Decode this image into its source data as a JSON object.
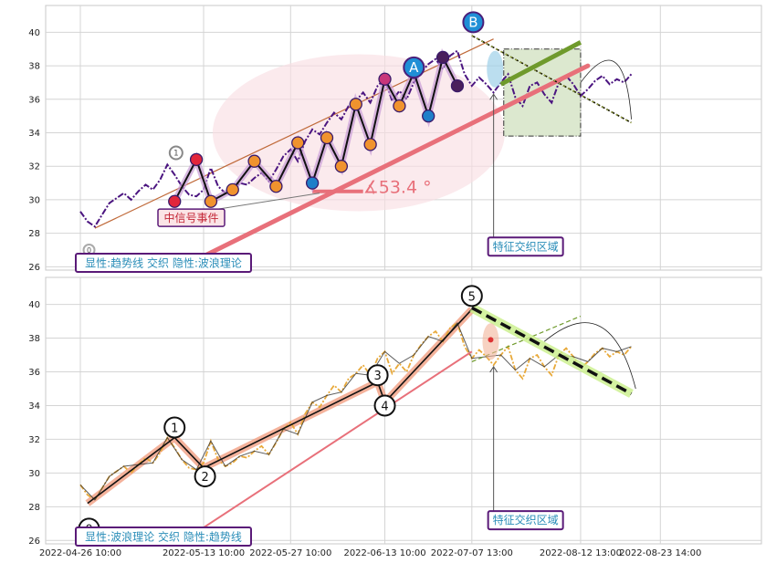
{
  "chart_data": [
    {
      "type": "line",
      "panel": "top",
      "ylim": [
        25.8,
        41.6
      ],
      "y_ticks": [
        26,
        28,
        30,
        32,
        34,
        36,
        38,
        40
      ],
      "grid": true,
      "annotation_box": "显性:趋势线 交织 隐性:波浪理论",
      "signal_label": "中信号事件",
      "feature_label": "特征交织区域",
      "angle_label": "∡53.4 °",
      "wave_labels": {
        "a": "A",
        "b": "B",
        "one": "1",
        "zero": "0"
      },
      "price_series": {
        "x": [
          0,
          0.5,
          1,
          1.5,
          2,
          2.5,
          3,
          3.5,
          4,
          4.5,
          5,
          5.5,
          6,
          6.5,
          7,
          7.5,
          8,
          8.5,
          9,
          9.5,
          10,
          10.5,
          11,
          11.5,
          12,
          12.5,
          13,
          13.5,
          14,
          14.5,
          15,
          15.5,
          16,
          16.5,
          17,
          17.5,
          18,
          18.5,
          19,
          19.5,
          20,
          20.5,
          21,
          21.5,
          22,
          22.5,
          23,
          23.5,
          24,
          24.5,
          25,
          25.5,
          26,
          26.5,
          27,
          27.5,
          28,
          28.5,
          29,
          29.5,
          30,
          30.5,
          31,
          31.5,
          32,
          32.5,
          33,
          33.5,
          34,
          34.5,
          35,
          35.5,
          36,
          36.5,
          37,
          37.5,
          38
        ],
        "y": [
          29.3,
          28.7,
          28.4,
          29.1,
          29.8,
          30.1,
          30.4,
          30.0,
          30.5,
          30.9,
          30.6,
          31.2,
          32.1,
          31.5,
          30.8,
          30.3,
          30.2,
          30.6,
          31.9,
          30.8,
          30.4,
          30.6,
          31.0,
          30.9,
          31.3,
          31.6,
          31.1,
          31.8,
          32.6,
          33.0,
          32.3,
          33.5,
          34.2,
          33.9,
          34.6,
          35.2,
          34.8,
          35.6,
          35.9,
          36.4,
          35.8,
          36.8,
          37.2,
          35.9,
          36.5,
          36.0,
          37.0,
          37.6,
          38.1,
          38.4,
          37.8,
          38.6,
          38.9,
          37.5,
          36.8,
          37.3,
          36.9,
          36.4,
          37.0,
          37.5,
          36.1,
          35.6,
          36.8,
          37.0,
          36.3,
          35.8,
          37.0,
          37.4,
          36.9,
          36.2,
          36.6,
          37.1,
          37.4,
          36.9,
          37.2,
          37.0,
          37.5
        ]
      },
      "trend_line": {
        "x": [
          7.5,
          35
        ],
        "y": [
          26.2,
          38.0
        ]
      },
      "upper_channel": {
        "x": [
          1,
          28.5
        ],
        "y": [
          28.3,
          39.6
        ]
      },
      "forecast_line": {
        "x": [
          27,
          38
        ],
        "y": [
          39.8,
          34.6
        ]
      },
      "green_line": {
        "x": [
          29,
          34.5
        ],
        "y": [
          36.9,
          39.4
        ]
      },
      "wave_points": {
        "x": [
          6.5,
          8,
          9,
          10.5,
          12,
          13.5,
          15,
          16,
          17,
          18,
          19,
          20,
          21,
          22,
          23,
          24,
          25,
          26
        ],
        "y": [
          29.9,
          32.4,
          29.9,
          30.6,
          32.3,
          30.8,
          33.4,
          31.0,
          33.7,
          32.0,
          35.7,
          33.3,
          37.2,
          35.6,
          37.6,
          35.0,
          38.5,
          36.8
        ]
      }
    },
    {
      "type": "line",
      "panel": "bottom",
      "ylim": [
        25.8,
        41.6
      ],
      "y_ticks": [
        26,
        28,
        30,
        32,
        34,
        36,
        38,
        40
      ],
      "grid": true,
      "annotation_box": "显性:波浪理论 交织 隐性:趋势线",
      "feature_label": "特征交织区域",
      "wave_labels": [
        "0",
        "1",
        "2",
        "3",
        "4",
        "5"
      ],
      "price_series": {
        "x": [
          0,
          0.5,
          1,
          1.5,
          2,
          2.5,
          3,
          3.5,
          4,
          4.5,
          5,
          5.5,
          6,
          6.5,
          7,
          7.5,
          8,
          8.5,
          9,
          9.5,
          10,
          10.5,
          11,
          11.5,
          12,
          12.5,
          13,
          13.5,
          14,
          14.5,
          15,
          15.5,
          16,
          16.5,
          17,
          17.5,
          18,
          18.5,
          19,
          19.5,
          20,
          20.5,
          21,
          21.5,
          22,
          22.5,
          23,
          23.5,
          24,
          24.5,
          25,
          25.5,
          26,
          26.5,
          27,
          27.5,
          28,
          28.5,
          29,
          29.5,
          30,
          30.5,
          31,
          31.5,
          32,
          32.5,
          33,
          33.5,
          34,
          34.5,
          35,
          35.5,
          36,
          36.5,
          37,
          37.5,
          38
        ],
        "y": [
          29.3,
          28.7,
          28.4,
          29.1,
          29.8,
          30.1,
          30.4,
          30.0,
          30.5,
          30.9,
          30.6,
          31.2,
          32.1,
          31.5,
          30.8,
          30.3,
          30.2,
          30.6,
          31.9,
          30.8,
          30.4,
          30.6,
          31.0,
          30.9,
          31.3,
          31.6,
          31.1,
          31.8,
          32.6,
          33.0,
          32.3,
          33.5,
          34.2,
          33.9,
          34.6,
          35.2,
          34.8,
          35.6,
          35.9,
          36.4,
          35.8,
          36.8,
          37.2,
          35.9,
          36.5,
          36.0,
          37.0,
          37.6,
          38.1,
          38.4,
          37.8,
          38.6,
          38.9,
          37.5,
          36.8,
          37.3,
          36.9,
          36.4,
          37.0,
          37.5,
          36.1,
          35.6,
          36.8,
          37.0,
          36.3,
          35.8,
          37.0,
          37.4,
          36.9,
          36.2,
          36.6,
          37.1,
          37.4,
          36.9,
          37.2,
          37.0,
          37.5
        ]
      },
      "wave_path": {
        "x": [
          0.5,
          6.5,
          8.5,
          20.5,
          21,
          27
        ],
        "y": [
          28.2,
          32.1,
          30.3,
          35.4,
          34.2,
          39.7
        ]
      },
      "trend_line": {
        "x": [
          7.5,
          27
        ],
        "y": [
          26.2,
          37.2
        ]
      },
      "forecast_line": {
        "x": [
          27,
          38
        ],
        "y": [
          39.8,
          34.7
        ]
      }
    }
  ],
  "x_axis_labels": [
    "2022-04-26 10:00",
    "2022-05-13 10:00",
    "2022-05-27 10:00",
    "2022-06-13 10:00",
    "2022-07-07 13:00",
    "2022-08-12 13:00",
    "2022-08-23 14:00"
  ],
  "colors": {
    "purple": "#4b1580",
    "orange": "#e8a93a",
    "trend": "#e8707a",
    "green": "#6f9a2c",
    "salmon": "#f2a48a",
    "lime": "#c9ef8a",
    "box_border": "#5a1a78",
    "box_text": "#2a8db8"
  }
}
